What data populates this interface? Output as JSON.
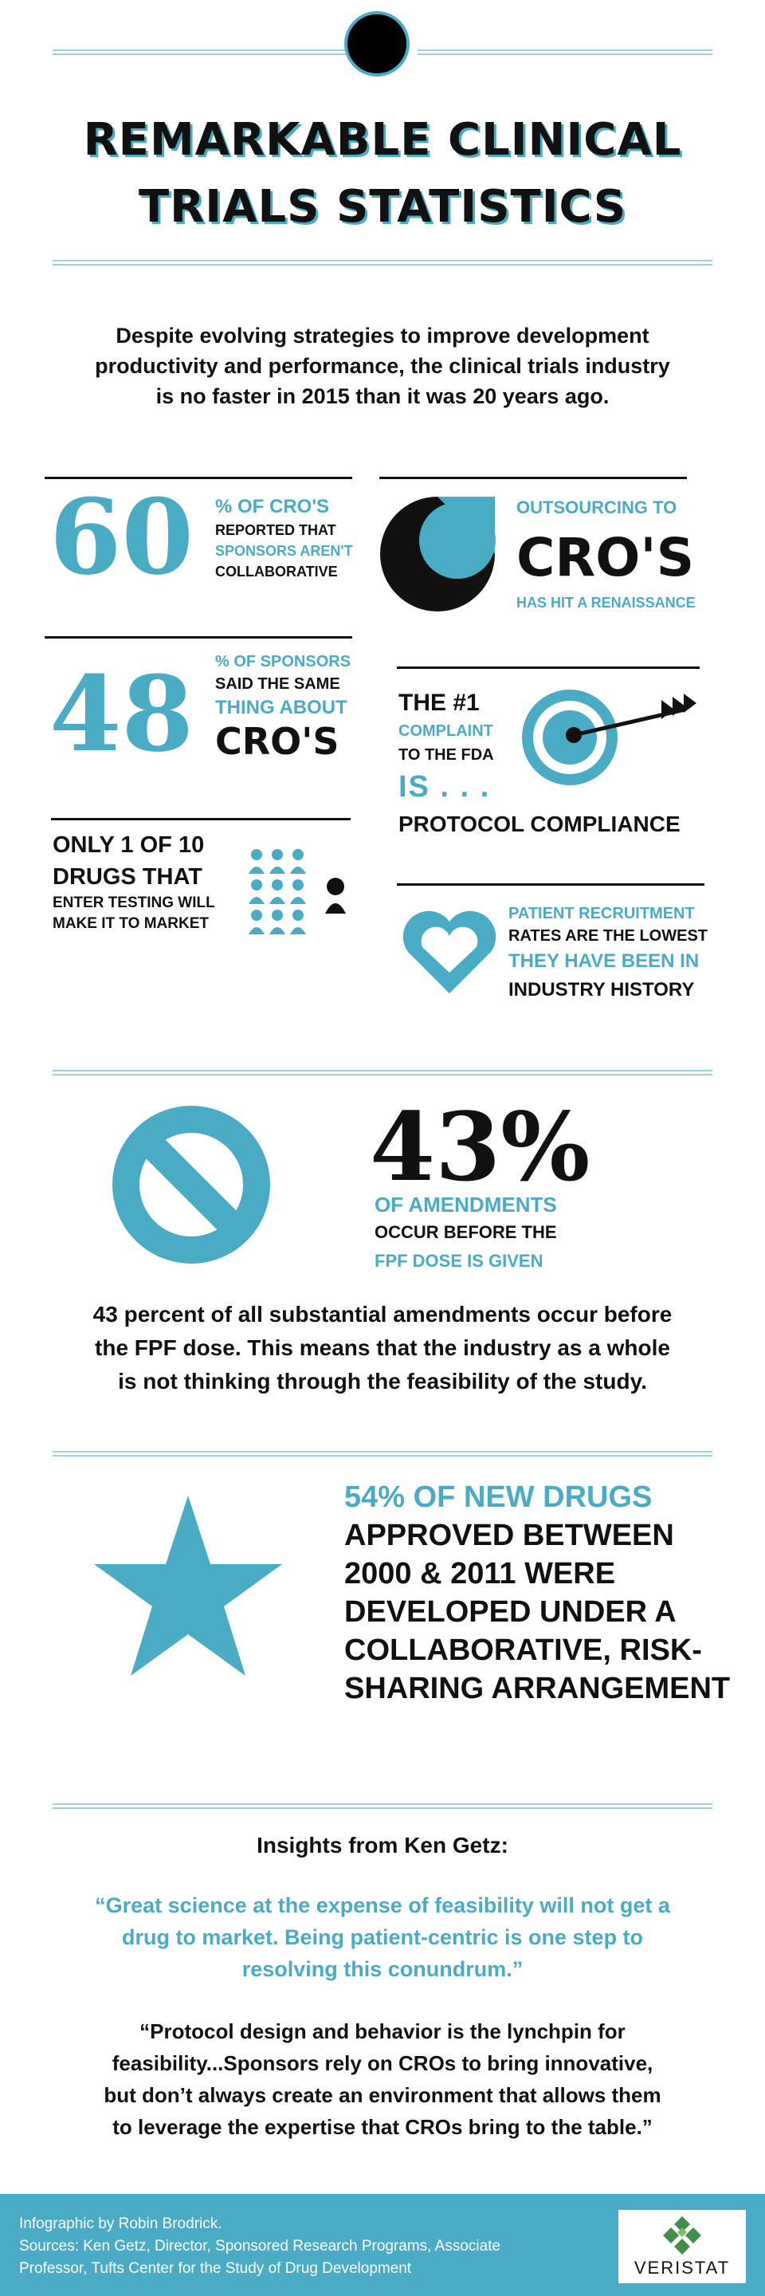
{
  "header": {
    "title_line1": "REMARKABLE CLINICAL",
    "title_line2": "TRIALS STATISTICS"
  },
  "intro": {
    "line1": "Despite evolving strategies to improve development",
    "line2": "productivity and performance, the clinical trials industry",
    "line3": "is no faster in 2015 than it was 20 years ago."
  },
  "stats": {
    "cro60": {
      "number": "60",
      "label1": "% OF CRO'S",
      "label2": "REPORTED THAT",
      "label3": "SPONSORS AREN'T",
      "label4": "COLLABORATIVE"
    },
    "outsourcing": {
      "line1": "OUTSOURCING TO",
      "line2": "CRO'S",
      "line3": "HAS HIT A RENAISSANCE"
    },
    "sponsors48": {
      "number": "48",
      "label1": "% OF SPONSORS",
      "label2": "SAID THE SAME",
      "label3": "THING ABOUT",
      "label4": "CRO'S"
    },
    "complaint": {
      "line1": "THE #1",
      "line2": "COMPLAINT",
      "line3": "TO THE FDA",
      "line4": "IS . . .",
      "line5": "PROTOCOL COMPLIANCE"
    },
    "drugs": {
      "line1": "ONLY 1 OF 10",
      "line2": "DRUGS THAT",
      "line3": "ENTER TESTING WILL",
      "line4": "MAKE IT TO MARKET"
    },
    "recruitment": {
      "line1": "PATIENT RECRUITMENT",
      "line2": "RATES ARE THE LOWEST",
      "line3": "THEY HAVE BEEN IN",
      "line4": "INDUSTRY HISTORY"
    }
  },
  "amendments": {
    "number": "43%",
    "line1": "OF AMENDMENTS",
    "line2": "OCCUR BEFORE THE",
    "line3": "FPF DOSE IS GIVEN",
    "para1": "43 percent of all substantial amendments occur before",
    "para2": "the FPF dose. This means that the industry as a whole",
    "para3": "is not thinking through the feasibility of the study."
  },
  "newdrugs": {
    "line1": "54% OF NEW DRUGS",
    "line2": "APPROVED BETWEEN",
    "line3": "2000 & 2011 WERE",
    "line4": "DEVELOPED UNDER A",
    "line5": "COLLABORATIVE, RISK-",
    "line6": "SHARING ARRANGEMENT"
  },
  "insights": {
    "heading": "Insights from Ken Getz:",
    "quote1_l1": "“Great science at the expense of feasibility will not get a",
    "quote1_l2": "drug to market. Being patient-centric is one step to",
    "quote1_l3": "resolving this conundrum.”",
    "quote2_l1": "“Protocol design and behavior is the lynchpin for",
    "quote2_l2": "feasibility...Sponsors rely on CROs to bring innovative,",
    "quote2_l3": "but don’t always create an environment that allows them",
    "quote2_l4": "to leverage the expertise that CROs bring to the table.”"
  },
  "footer": {
    "credit": "Infographic by Robin Brodrick.",
    "sources1": "Sources: Ken Getz, Director, Sponsored Research Programs, Associate",
    "sources2": "Professor, Tufts Center for the Study of Drug Development",
    "logo_text": "VERISTAT"
  },
  "colors": {
    "accent": "#4aabc4",
    "text": "#111111",
    "rule": "#9fd0dd",
    "footer_bg": "#4aabc4"
  },
  "icons": [
    "circle-icon",
    "crescent-icon",
    "target-arrow-icon",
    "people-icon",
    "heart-icon",
    "prohibited-icon",
    "star-icon",
    "veristat-logo-icon"
  ]
}
